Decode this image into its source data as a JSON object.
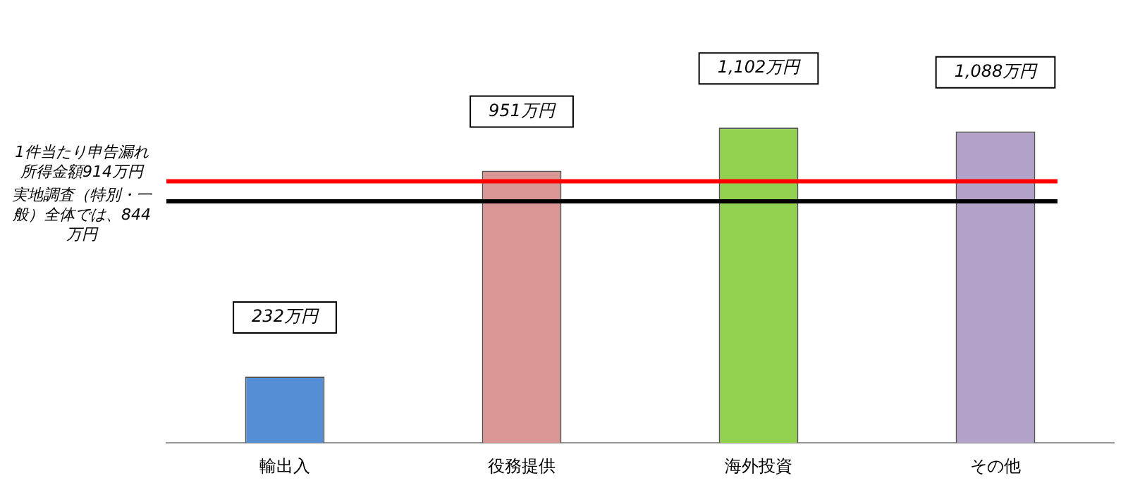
{
  "chart_data": {
    "type": "bar",
    "categories": [
      "輸出入",
      "役務提供",
      "海外投資",
      "その他"
    ],
    "values": [
      232,
      951,
      1102,
      1088
    ],
    "colors": [
      "#558ed5",
      "#d99694",
      "#92d050",
      "#b3a2c7"
    ],
    "value_labels": [
      "232万円",
      "951万円",
      "1,102万円",
      "1,088万円"
    ],
    "relative": false,
    "ref_lines": [
      {
        "axis": "y",
        "value": 914,
        "label": "1件当たり申告漏れ所得金額914万円",
        "color": "#ff0000"
      },
      {
        "axis": "y",
        "value": 844,
        "label": "実地調査（特別・一般）全体では、844万円",
        "color": "#000000"
      }
    ],
    "grid": false,
    "legend": false
  }
}
